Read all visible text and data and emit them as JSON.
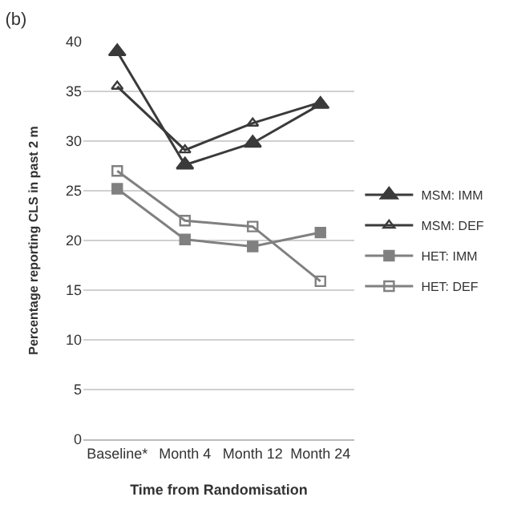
{
  "chart_data": {
    "type": "line",
    "title": "(b)",
    "xlabel": "Time from Randomisation",
    "ylabel": "Percentage reporting CLS in past 2 m",
    "categories": [
      "Baseline*",
      "Month 4",
      "Month 12",
      "Month 24"
    ],
    "series": [
      {
        "name": "MSM: IMM",
        "color": "#3a3a3a",
        "marker": "triangle-filled",
        "values": [
          39,
          27.6,
          29.8,
          33.7
        ]
      },
      {
        "name": "MSM: DEF",
        "color": "#3a3a3a",
        "marker": "triangle-open",
        "values": [
          35.5,
          29.1,
          31.8,
          33.9
        ]
      },
      {
        "name": "HET: IMM",
        "color": "#808080",
        "marker": "square-filled",
        "values": [
          25.2,
          20.1,
          19.4,
          20.8
        ]
      },
      {
        "name": "HET: DEF",
        "color": "#808080",
        "marker": "square-open",
        "values": [
          27,
          22,
          21.4,
          15.9
        ]
      }
    ],
    "ylim": [
      0,
      40
    ],
    "yticks": [
      0,
      5,
      10,
      15,
      20,
      25,
      30,
      35,
      40
    ],
    "grid": "y",
    "legend": "right",
    "line_style": "solid"
  }
}
